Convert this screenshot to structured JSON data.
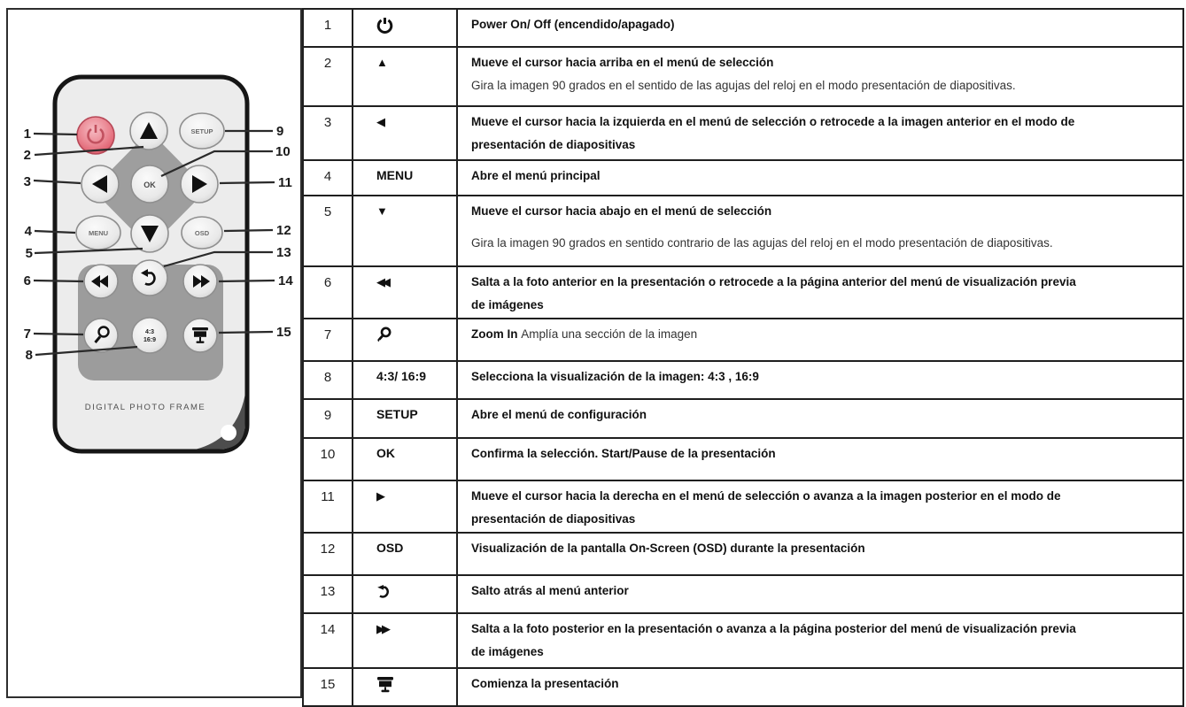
{
  "remote": {
    "brand": "DIGITAL PHOTO FRAME",
    "buttons": {
      "setup": "SETUP",
      "menu": "MENU",
      "osd": "OSD",
      "ok": "OK",
      "ratio_top": "4:3",
      "ratio_bottom": "16:9"
    },
    "callouts": [
      "1",
      "2",
      "3",
      "4",
      "5",
      "6",
      "7",
      "8",
      "9",
      "10",
      "11",
      "12",
      "13",
      "14",
      "15"
    ]
  },
  "colors": {
    "power_button": "#e06070",
    "pad_gray": "#9c9c9c",
    "body_gray": "#ececec",
    "table_border": "#1f1f1f"
  },
  "table": {
    "rows": [
      {
        "num": "1",
        "symbol": {
          "type": "icon",
          "name": "power-icon"
        },
        "lines": [
          {
            "segs": [
              {
                "t": "Power On/ Off (encendido/apagado)",
                "b": true
              }
            ]
          }
        ]
      },
      {
        "num": "2",
        "symbol": {
          "type": "glyph",
          "name": "up-triangle-icon",
          "value": "▲"
        },
        "lines": [
          {
            "segs": [
              {
                "t": "Mueve el cursor hacia arriba en el menú de selección",
                "b": true
              }
            ]
          },
          {
            "segs": [
              {
                "t": "Gira la imagen 90 grados en el sentido de las agujas del reloj en el modo presentación de diapositivas.",
                "b": false
              }
            ]
          }
        ]
      },
      {
        "num": "3",
        "symbol": {
          "type": "glyph",
          "name": "left-triangle-icon",
          "value": "◀"
        },
        "lines": [
          {
            "segs": [
              {
                "t": "Mueve el cursor hacia la izquierda en el menú de selección o retrocede a la imagen anterior en el modo de",
                "b": true
              }
            ]
          },
          {
            "segs": [
              {
                "t": "presentación de diapositivas",
                "b": true
              }
            ]
          }
        ]
      },
      {
        "num": "4",
        "symbol": {
          "type": "text",
          "value": "MENU"
        },
        "lines": [
          {
            "segs": [
              {
                "t": "Abre el menú principal",
                "b": true
              }
            ]
          }
        ]
      },
      {
        "num": "5",
        "symbol": {
          "type": "glyph",
          "name": "down-triangle-icon",
          "value": "▼"
        },
        "lines": [
          {
            "segs": [
              {
                "t": "Mueve el cursor hacia abajo en el menú de selección",
                "b": true
              }
            ]
          },
          {
            "gap": true,
            "segs": [
              {
                "t": "Gira la imagen 90 grados en sentido contrario de las agujas del reloj en el modo presentación de diapositivas.",
                "b": false
              }
            ]
          }
        ]
      },
      {
        "num": "6",
        "symbol": {
          "type": "glyph",
          "name": "double-left-icon",
          "value": "◀◀"
        },
        "lines": [
          {
            "segs": [
              {
                "t": "Salta a la foto anterior en la presentación o retrocede a la página anterior del menú de visualización previa",
                "b": true
              }
            ]
          },
          {
            "segs": [
              {
                "t": "de imágenes",
                "b": true
              }
            ]
          }
        ]
      },
      {
        "num": "7",
        "symbol": {
          "type": "icon",
          "name": "magnifier-icon"
        },
        "lines": [
          {
            "segs": [
              {
                "t": "Zoom In ",
                "b": true
              },
              {
                "t": "Amplía una sección de la imagen",
                "b": false
              }
            ]
          }
        ]
      },
      {
        "num": "8",
        "symbol": {
          "type": "text",
          "value": "4:3/ 16:9"
        },
        "lines": [
          {
            "segs": [
              {
                "t": "Selecciona la visualización de la imagen: 4:3 , 16:9",
                "b": true
              }
            ]
          }
        ]
      },
      {
        "num": "9",
        "symbol": {
          "type": "text",
          "value": "SETUP"
        },
        "lines": [
          {
            "segs": [
              {
                "t": "Abre el menú de configuración",
                "b": true
              }
            ]
          }
        ]
      },
      {
        "num": "10",
        "symbol": {
          "type": "text",
          "value": "OK"
        },
        "lines": [
          {
            "segs": [
              {
                "t": "Confirma la selección. Start/Pause de la presentación",
                "b": true
              }
            ]
          }
        ]
      },
      {
        "num": "11",
        "symbol": {
          "type": "glyph",
          "name": "right-triangle-icon",
          "value": "▶"
        },
        "lines": [
          {
            "segs": [
              {
                "t": "Mueve el cursor hacia la derecha en el menú de selección o avanza a la imagen posterior en el modo de",
                "b": true
              }
            ]
          },
          {
            "segs": [
              {
                "t": "presentación de diapositivas",
                "b": true
              }
            ]
          }
        ]
      },
      {
        "num": "12",
        "symbol": {
          "type": "text",
          "value": "OSD"
        },
        "lines": [
          {
            "segs": [
              {
                "t": "Visualización de la pantalla On-Screen (OSD) durante la presentación",
                "b": true
              }
            ]
          }
        ]
      },
      {
        "num": "13",
        "symbol": {
          "type": "icon",
          "name": "back-arrow-icon"
        },
        "lines": [
          {
            "segs": [
              {
                "t": "Salto atrás al menú anterior",
                "b": true
              }
            ]
          }
        ]
      },
      {
        "num": "14",
        "symbol": {
          "type": "glyph",
          "name": "double-right-icon",
          "value": "▶▶"
        },
        "lines": [
          {
            "segs": [
              {
                "t": "Salta a la foto posterior en la presentación o avanza a la página posterior del menú de visualización previa",
                "b": true
              }
            ]
          },
          {
            "segs": [
              {
                "t": "de imágenes",
                "b": true
              }
            ]
          }
        ]
      },
      {
        "num": "15",
        "symbol": {
          "type": "icon",
          "name": "screen-icon"
        },
        "lines": [
          {
            "segs": [
              {
                "t": "Comienza la presentación",
                "b": true
              }
            ]
          }
        ]
      }
    ]
  }
}
